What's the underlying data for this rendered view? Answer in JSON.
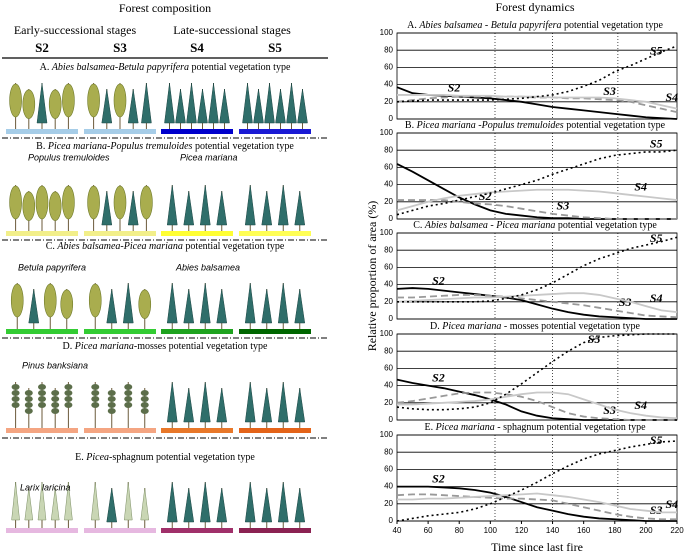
{
  "composition": {
    "title": "Forest composition",
    "early": "Early-successional stages",
    "late": "Late-successional stages",
    "stages": [
      "S2",
      "S3",
      "S4",
      "S5"
    ],
    "panels": [
      {
        "title": [
          "A. ",
          "Abies balsamea-Betula papyrifera",
          " potential vegetation type"
        ],
        "species": []
      },
      {
        "title": [
          "B. ",
          "Picea mariana-Populus tremuloides",
          " potential vegetation type"
        ],
        "species": [
          "Populus tremuloides",
          "Picea mariana"
        ]
      },
      {
        "title": [
          "C. ",
          "Abies balsamea-Picea mariana",
          " potential vegetation type"
        ],
        "species": [
          "Betula papyrifera",
          "Abies balsamea"
        ]
      },
      {
        "title": [
          "D. ",
          "Picea mariana",
          "-mosses potential vegetation type"
        ],
        "species": [
          "Pinus banksiana"
        ]
      },
      {
        "title": [
          "E. ",
          "Picea",
          "-sphagnum potential vegetation type"
        ],
        "species": [
          "Larix laricina"
        ]
      }
    ]
  },
  "dynamics_title": "Forest dynamics",
  "chart_data": [
    {
      "type": "line",
      "title": [
        "A. ",
        "Abies balsamea - Betula papyrifera",
        " potential vegetation type"
      ],
      "x": [
        40,
        50,
        60,
        70,
        80,
        90,
        100,
        110,
        120,
        130,
        140,
        150,
        160,
        170,
        180,
        190,
        200,
        210,
        220
      ],
      "xlim": [
        40,
        220
      ],
      "ylim": [
        0,
        100
      ],
      "yticks": [
        0,
        20,
        40,
        60,
        80,
        100
      ],
      "vlines": [
        103,
        140,
        182
      ],
      "grid": true,
      "series": [
        {
          "name": "S2",
          "color": "#000000",
          "dash": "solid",
          "values": [
            37,
            30,
            28,
            27,
            26,
            25,
            24,
            22,
            20,
            17,
            14,
            12,
            10,
            8,
            6,
            4,
            2,
            1,
            0
          ]
        },
        {
          "name": "S3",
          "color": "#999999",
          "dash": "dashed",
          "values": [
            20,
            22,
            24,
            25,
            26,
            26,
            26,
            26,
            26,
            25,
            25,
            24,
            24,
            23,
            22,
            20,
            16,
            12,
            8
          ]
        },
        {
          "name": "S4",
          "color": "#c8c8c8",
          "dash": "solid",
          "values": [
            28,
            28,
            28,
            28,
            27,
            27,
            27,
            26,
            26,
            26,
            25,
            25,
            25,
            25,
            24,
            22,
            20,
            16,
            12
          ]
        },
        {
          "name": "S5",
          "color": "#000000",
          "dash": "dotted",
          "values": [
            20,
            21,
            22,
            22,
            22,
            22,
            22,
            23,
            24,
            26,
            28,
            32,
            38,
            45,
            55,
            62,
            70,
            78,
            85
          ]
        }
      ]
    },
    {
      "type": "line",
      "title": [
        "B. ",
        "Picea mariana -Populus tremuloides",
        " potential vegetation type"
      ],
      "x": [
        40,
        50,
        60,
        70,
        80,
        90,
        100,
        110,
        120,
        130,
        140,
        150,
        160,
        170,
        180,
        190,
        200,
        210,
        220
      ],
      "xlim": [
        40,
        220
      ],
      "ylim": [
        0,
        100
      ],
      "yticks": [
        0,
        20,
        40,
        60,
        80,
        100
      ],
      "vlines": [
        103,
        140,
        182
      ],
      "grid": true,
      "series": [
        {
          "name": "S2",
          "color": "#000000",
          "dash": "solid",
          "values": [
            64,
            55,
            45,
            35,
            25,
            17,
            10,
            6,
            4,
            2,
            1,
            1,
            0,
            0,
            0,
            0,
            0,
            0,
            0
          ]
        },
        {
          "name": "S3",
          "color": "#999999",
          "dash": "dashed",
          "values": [
            22,
            22,
            22,
            22,
            20,
            18,
            17,
            15,
            12,
            9,
            6,
            4,
            2,
            1,
            0,
            0,
            0,
            0,
            0
          ]
        },
        {
          "name": "S4",
          "color": "#c8c8c8",
          "dash": "solid",
          "values": [
            10,
            15,
            20,
            24,
            27,
            29,
            31,
            32,
            33,
            34,
            34,
            34,
            33,
            32,
            30,
            28,
            26,
            24,
            22
          ]
        },
        {
          "name": "S5",
          "color": "#000000",
          "dash": "dotted",
          "values": [
            5,
            10,
            15,
            18,
            22,
            26,
            30,
            35,
            40,
            45,
            52,
            58,
            64,
            70,
            74,
            76,
            78,
            78,
            80
          ]
        }
      ]
    },
    {
      "type": "line",
      "title": [
        "C. ",
        "Abies balsamea - Picea mariana",
        " potential vegetation type"
      ],
      "x": [
        40,
        50,
        60,
        70,
        80,
        90,
        100,
        110,
        120,
        130,
        140,
        150,
        160,
        170,
        180,
        190,
        200,
        210,
        220
      ],
      "xlim": [
        40,
        220
      ],
      "ylim": [
        0,
        100
      ],
      "yticks": [
        0,
        20,
        40,
        60,
        80,
        100
      ],
      "vlines": [
        103,
        140,
        182
      ],
      "grid": true,
      "ylabel": "Relative proportion of area (%)",
      "series": [
        {
          "name": "S2",
          "color": "#000000",
          "dash": "solid",
          "values": [
            35,
            36,
            35,
            33,
            31,
            29,
            27,
            25,
            22,
            17,
            12,
            8,
            5,
            3,
            2,
            1,
            0,
            0,
            0
          ]
        },
        {
          "name": "S3",
          "color": "#999999",
          "dash": "dashed",
          "values": [
            25,
            25,
            26,
            27,
            28,
            28,
            27,
            26,
            24,
            22,
            20,
            18,
            16,
            13,
            10,
            7,
            4,
            3,
            2
          ]
        },
        {
          "name": "S4",
          "color": "#c8c8c8",
          "dash": "solid",
          "values": [
            20,
            21,
            22,
            23,
            24,
            25,
            25,
            26,
            27,
            28,
            29,
            30,
            30,
            28,
            24,
            20,
            15,
            10,
            8
          ]
        },
        {
          "name": "S5",
          "color": "#000000",
          "dash": "dotted",
          "values": [
            20,
            20,
            20,
            20,
            20,
            20,
            21,
            24,
            28,
            34,
            42,
            52,
            62,
            70,
            76,
            82,
            86,
            90,
            95
          ]
        }
      ]
    },
    {
      "type": "line",
      "title": [
        "D. ",
        "Picea mariana",
        " - mosses potential vegetation type"
      ],
      "x": [
        40,
        50,
        60,
        70,
        80,
        90,
        100,
        110,
        120,
        130,
        140,
        150,
        160,
        170,
        180,
        190,
        200,
        210,
        220
      ],
      "xlim": [
        40,
        220
      ],
      "ylim": [
        0,
        100
      ],
      "yticks": [
        0,
        20,
        40,
        60,
        80,
        100
      ],
      "vlines": [
        103,
        140,
        182
      ],
      "grid": true,
      "series": [
        {
          "name": "S2",
          "color": "#000000",
          "dash": "solid",
          "values": [
            47,
            43,
            40,
            37,
            33,
            29,
            24,
            18,
            10,
            5,
            2,
            1,
            0,
            0,
            0,
            0,
            0,
            0,
            0
          ]
        },
        {
          "name": "S3",
          "color": "#999999",
          "dash": "dashed",
          "values": [
            20,
            22,
            25,
            28,
            31,
            32,
            32,
            30,
            27,
            22,
            15,
            8,
            4,
            2,
            1,
            0,
            0,
            0,
            0
          ]
        },
        {
          "name": "S4",
          "color": "#c8c8c8",
          "dash": "solid",
          "values": [
            18,
            18,
            19,
            20,
            21,
            22,
            24,
            27,
            30,
            32,
            32,
            30,
            24,
            18,
            12,
            8,
            5,
            3,
            2
          ]
        },
        {
          "name": "S5",
          "color": "#000000",
          "dash": "dotted",
          "values": [
            15,
            13,
            12,
            12,
            13,
            15,
            20,
            30,
            42,
            55,
            68,
            80,
            90,
            96,
            98,
            99,
            100,
            100,
            100
          ]
        }
      ]
    },
    {
      "type": "line",
      "title": [
        "E. ",
        "Picea mariana",
        " - sphagnum potential vegetation type"
      ],
      "x": [
        40,
        50,
        60,
        70,
        80,
        90,
        100,
        110,
        120,
        130,
        140,
        150,
        160,
        170,
        180,
        190,
        200,
        210,
        220
      ],
      "xlim": [
        40,
        220
      ],
      "xticks": [
        40,
        60,
        80,
        100,
        120,
        140,
        160,
        180,
        200,
        220
      ],
      "xlabel": "Time since last fire",
      "ylim": [
        0,
        100
      ],
      "yticks": [
        0,
        20,
        40,
        60,
        80,
        100
      ],
      "vlines": [
        103,
        140,
        182
      ],
      "grid": true,
      "series": [
        {
          "name": "S2",
          "color": "#000000",
          "dash": "solid",
          "values": [
            40,
            40,
            40,
            39,
            38,
            36,
            33,
            28,
            22,
            16,
            12,
            8,
            5,
            3,
            2,
            1,
            0,
            0,
            0
          ]
        },
        {
          "name": "S3",
          "color": "#999999",
          "dash": "dashed",
          "values": [
            30,
            31,
            31,
            30,
            29,
            28,
            27,
            26,
            26,
            25,
            24,
            20,
            16,
            12,
            8,
            5,
            3,
            2,
            2
          ]
        },
        {
          "name": "S4",
          "color": "#c8c8c8",
          "dash": "solid",
          "values": [
            25,
            25,
            26,
            26,
            27,
            28,
            29,
            30,
            31,
            32,
            30,
            28,
            25,
            22,
            18,
            14,
            12,
            10,
            10
          ]
        },
        {
          "name": "S5",
          "color": "#000000",
          "dash": "dotted",
          "values": [
            0,
            3,
            6,
            8,
            10,
            14,
            20,
            28,
            36,
            45,
            55,
            64,
            72,
            78,
            82,
            86,
            89,
            92,
            93
          ]
        }
      ]
    }
  ]
}
